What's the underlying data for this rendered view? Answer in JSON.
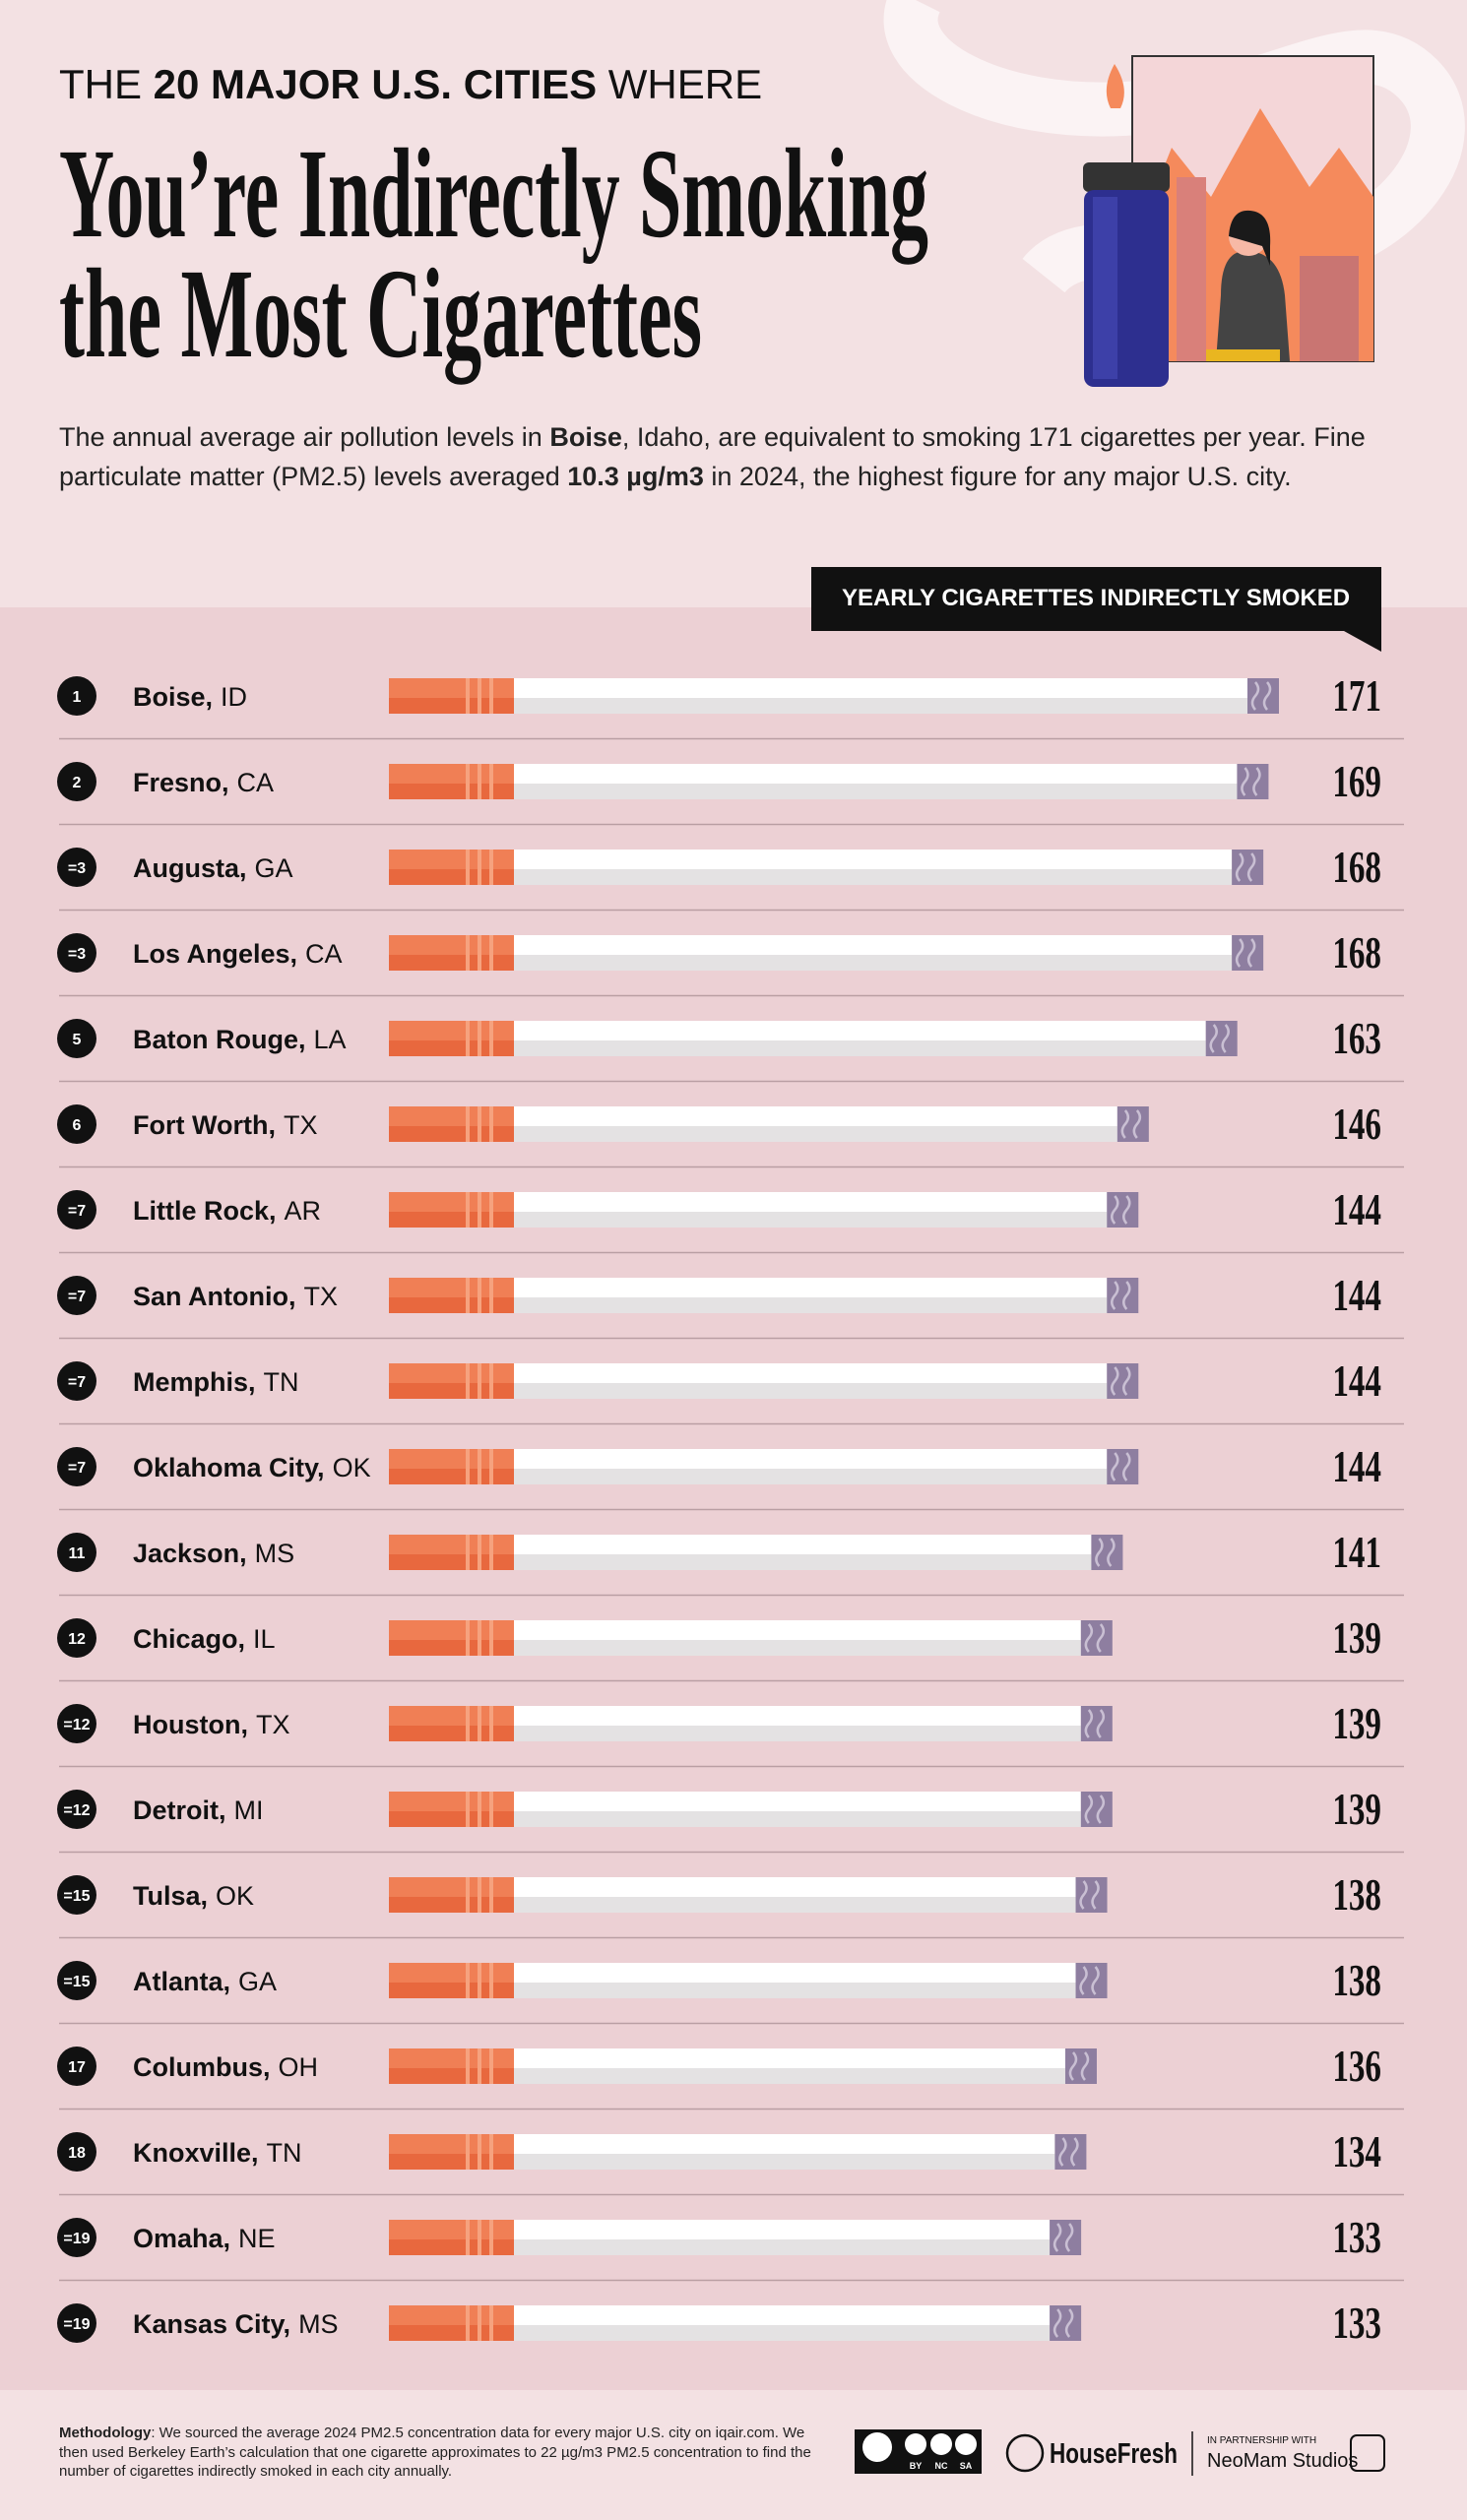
{
  "header": {
    "kicker": [
      "THE ",
      "20 MAJOR U.S. CITIES",
      " WHERE"
    ],
    "title": [
      "You’re Indirectly Smoking",
      "the Most Cigarettes"
    ],
    "description": [
      "The annual average air pollution levels in ",
      "Boise",
      ", Idaho, are equivalent to smoking 171 cigarettes per year. Fine particulate matter (PM2.5) levels averaged ",
      "10.3 µg/m3",
      " in 2024, the highest figure for any major U.S. city."
    ]
  },
  "chart_data": {
    "type": "bar",
    "title": "YEARLY CIGARETTES INDIRECTLY SMOKED",
    "ranks": [
      "1",
      "2",
      "=3",
      "=3",
      "5",
      "6",
      "=7",
      "=7",
      "=7",
      "=7",
      "11",
      "12",
      "=12",
      "=12",
      "=15",
      "=15",
      "17",
      "18",
      "=19",
      "=19"
    ],
    "categories": [
      "Boise,",
      "Fresno,",
      "Augusta,",
      "Los Angeles,",
      "Baton Rouge,",
      "Fort Worth,",
      "Little Rock,",
      "San Antonio,",
      "Memphis,",
      "Oklahoma City,",
      "Jackson,",
      "Chicago,",
      "Houston,",
      "Detroit,",
      "Tulsa,",
      "Atlanta,",
      "Columbus,",
      "Knoxville,",
      "Omaha,",
      "Kansas City,"
    ],
    "states": [
      "ID",
      "CA",
      "GA",
      "CA",
      "LA",
      "TX",
      "AR",
      "TX",
      "TN",
      "OK",
      "MS",
      "IL",
      "TX",
      "MI",
      "OK",
      "GA",
      "OH",
      "TN",
      "NE",
      "MS"
    ],
    "values": [
      171,
      169,
      168,
      168,
      163,
      146,
      144,
      144,
      144,
      144,
      141,
      139,
      139,
      139,
      138,
      138,
      136,
      134,
      133,
      133
    ],
    "color": "#f07f55"
  },
  "footer": {
    "methodology": [
      "Methodology",
      ": We sourced the average 2024 PM2.5 concentration data for every major U.S. city on iqair.com. We then used Berkeley Earth’s calculation that one cigarette approximates to 22 µg/m3 PM2.5 concentration to find the number of cigarettes indirectly smoked in each city annually."
    ],
    "license": [
      "BY",
      "NC",
      "SA"
    ],
    "brand": "HouseFresh",
    "partner_label": "IN PARTNERSHIP WITH",
    "partner": "NeoMam Studios"
  }
}
